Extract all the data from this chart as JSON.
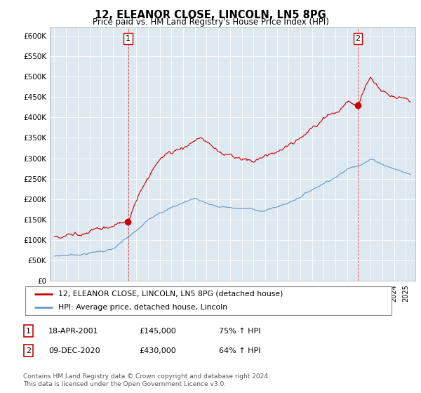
{
  "title": "12, ELEANOR CLOSE, LINCOLN, LN5 8PG",
  "subtitle": "Price paid vs. HM Land Registry's House Price Index (HPI)",
  "legend_line1": "12, ELEANOR CLOSE, LINCOLN, LN5 8PG (detached house)",
  "legend_line2": "HPI: Average price, detached house, Lincoln",
  "sale1_date": "18-APR-2001",
  "sale1_price": 145000,
  "sale1_label": "75% ↑ HPI",
  "sale2_date": "09-DEC-2020",
  "sale2_price": 430000,
  "sale2_label": "64% ↑ HPI",
  "footer1": "Contains HM Land Registry data © Crown copyright and database right 2024.",
  "footer2": "This data is licensed under the Open Government Licence v3.0.",
  "red_color": "#cc0000",
  "blue_color": "#6699cc",
  "bg_color": "#dde8f0",
  "ylim_max": 620000,
  "yticks": [
    0,
    50000,
    100000,
    150000,
    200000,
    250000,
    300000,
    350000,
    400000,
    450000,
    500000,
    550000,
    600000
  ],
  "xlim_start": 1994.6,
  "xlim_end": 2025.8,
  "sale1_year": 2001.3,
  "sale2_year": 2020.92
}
